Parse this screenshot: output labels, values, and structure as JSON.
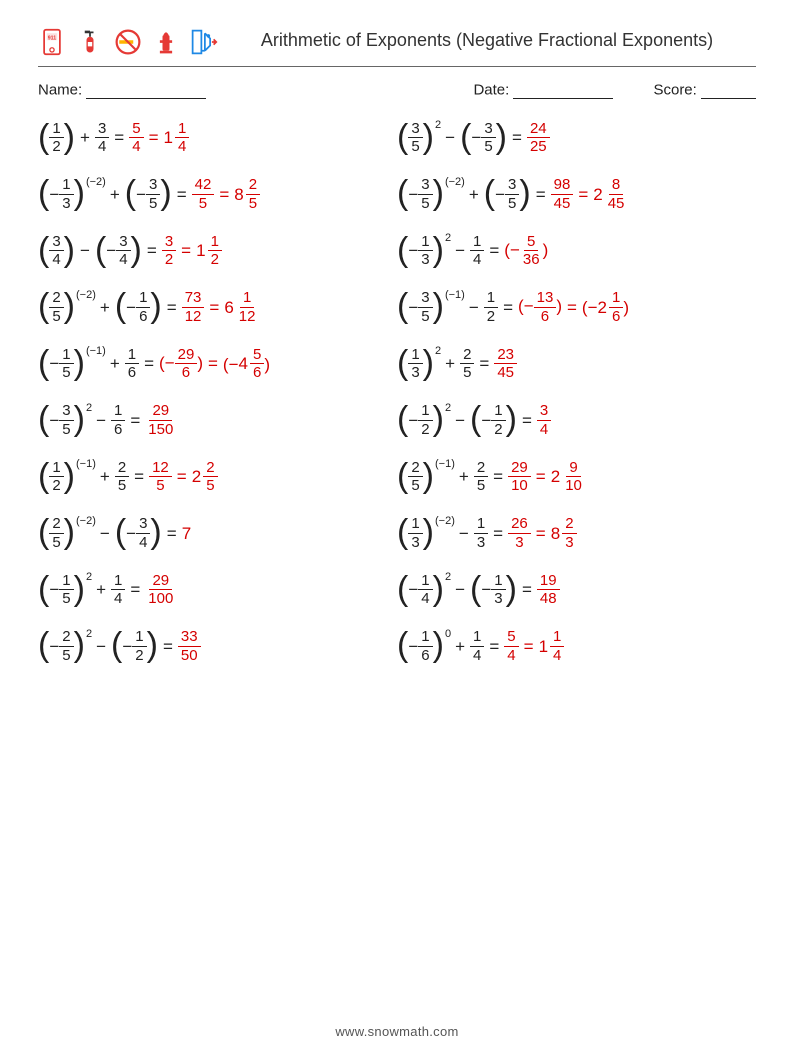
{
  "title": "Arithmetic of Exponents (Negative Fractional Exponents)",
  "name_label": "Name:",
  "date_label": "Date:",
  "score_label": "Score:",
  "footer": "www.snowmath.com",
  "colors": {
    "answer": "#d40000",
    "text": "#222222",
    "rule": "#666666"
  },
  "icons": [
    {
      "name": "emergency-911-icon",
      "stroke": "#e53935",
      "fill": "#ffffff",
      "label": "911"
    },
    {
      "name": "fire-extinguisher-icon",
      "stroke": "#e53935",
      "fill": "#e53935"
    },
    {
      "name": "no-smoking-icon",
      "stroke": "#e53935",
      "fill": "#ffb300"
    },
    {
      "name": "fire-hydrant-icon",
      "stroke": "#e53935",
      "fill": "#e53935"
    },
    {
      "name": "emergency-exit-icon",
      "stroke": "#1e88e5",
      "fill": "#1e88e5"
    }
  ],
  "problems": [
    {
      "base": {
        "sign": "",
        "n": "1",
        "d": "2"
      },
      "exp": null,
      "op": "+",
      "arg": {
        "sign": "",
        "n": "3",
        "d": "4",
        "par": false
      },
      "a1": {
        "n": "5",
        "d": "4"
      },
      "a2": {
        "w": "1",
        "n": "1",
        "d": "4"
      }
    },
    {
      "base": {
        "sign": "",
        "n": "3",
        "d": "5"
      },
      "exp": "2",
      "op": "−",
      "arg": {
        "sign": "−",
        "n": "3",
        "d": "5",
        "par": true
      },
      "a1": {
        "n": "24",
        "d": "25"
      }
    },
    {
      "base": {
        "sign": "−",
        "n": "1",
        "d": "3"
      },
      "exp": "(−2)",
      "op": "+",
      "arg": {
        "sign": "−",
        "n": "3",
        "d": "5",
        "par": true
      },
      "a1": {
        "n": "42",
        "d": "5"
      },
      "a2": {
        "w": "8",
        "n": "2",
        "d": "5"
      }
    },
    {
      "base": {
        "sign": "−",
        "n": "3",
        "d": "5"
      },
      "exp": "(−2)",
      "op": "+",
      "arg": {
        "sign": "−",
        "n": "3",
        "d": "5",
        "par": true
      },
      "a1": {
        "n": "98",
        "d": "45"
      },
      "a2": {
        "w": "2",
        "n": "8",
        "d": "45"
      }
    },
    {
      "base": {
        "sign": "",
        "n": "3",
        "d": "4"
      },
      "exp": null,
      "op": "−",
      "arg": {
        "sign": "−",
        "n": "3",
        "d": "4",
        "par": true
      },
      "a1": {
        "n": "3",
        "d": "2"
      },
      "a2": {
        "w": "1",
        "n": "1",
        "d": "2"
      }
    },
    {
      "base": {
        "sign": "−",
        "n": "1",
        "d": "3"
      },
      "exp": "2",
      "op": "−",
      "arg": {
        "sign": "",
        "n": "1",
        "d": "4",
        "par": false
      },
      "a1": {
        "neg": true,
        "n": "5",
        "d": "36"
      }
    },
    {
      "base": {
        "sign": "",
        "n": "2",
        "d": "5"
      },
      "exp": "(−2)",
      "op": "+",
      "arg": {
        "sign": "−",
        "n": "1",
        "d": "6",
        "par": true
      },
      "a1": {
        "n": "73",
        "d": "12"
      },
      "a2": {
        "w": "6",
        "n": "1",
        "d": "12"
      }
    },
    {
      "base": {
        "sign": "−",
        "n": "3",
        "d": "5"
      },
      "exp": "(−1)",
      "op": "−",
      "arg": {
        "sign": "",
        "n": "1",
        "d": "2",
        "par": false
      },
      "a1": {
        "neg": true,
        "n": "13",
        "d": "6"
      },
      "a2": {
        "neg": true,
        "w": "2",
        "n": "1",
        "d": "6"
      }
    },
    {
      "base": {
        "sign": "−",
        "n": "1",
        "d": "5"
      },
      "exp": "(−1)",
      "op": "+",
      "arg": {
        "sign": "",
        "n": "1",
        "d": "6",
        "par": false
      },
      "a1": {
        "neg": true,
        "n": "29",
        "d": "6"
      },
      "a2": {
        "neg": true,
        "w": "4",
        "n": "5",
        "d": "6"
      }
    },
    {
      "base": {
        "sign": "",
        "n": "1",
        "d": "3"
      },
      "exp": "2",
      "op": "+",
      "arg": {
        "sign": "",
        "n": "2",
        "d": "5",
        "par": false
      },
      "a1": {
        "n": "23",
        "d": "45"
      }
    },
    {
      "base": {
        "sign": "−",
        "n": "3",
        "d": "5"
      },
      "exp": "2",
      "op": "−",
      "arg": {
        "sign": "",
        "n": "1",
        "d": "6",
        "par": false
      },
      "a1": {
        "n": "29",
        "d": "150"
      }
    },
    {
      "base": {
        "sign": "−",
        "n": "1",
        "d": "2"
      },
      "exp": "2",
      "op": "−",
      "arg": {
        "sign": "−",
        "n": "1",
        "d": "2",
        "par": true
      },
      "a1": {
        "n": "3",
        "d": "4"
      }
    },
    {
      "base": {
        "sign": "",
        "n": "1",
        "d": "2"
      },
      "exp": "(−1)",
      "op": "+",
      "arg": {
        "sign": "",
        "n": "2",
        "d": "5",
        "par": false
      },
      "a1": {
        "n": "12",
        "d": "5"
      },
      "a2": {
        "w": "2",
        "n": "2",
        "d": "5"
      }
    },
    {
      "base": {
        "sign": "",
        "n": "2",
        "d": "5"
      },
      "exp": "(−1)",
      "op": "+",
      "arg": {
        "sign": "",
        "n": "2",
        "d": "5",
        "par": false
      },
      "a1": {
        "n": "29",
        "d": "10"
      },
      "a2": {
        "w": "2",
        "n": "9",
        "d": "10"
      }
    },
    {
      "base": {
        "sign": "",
        "n": "2",
        "d": "5"
      },
      "exp": "(−2)",
      "op": "−",
      "arg": {
        "sign": "−",
        "n": "3",
        "d": "4",
        "par": true
      },
      "a1": {
        "int": "7"
      }
    },
    {
      "base": {
        "sign": "",
        "n": "1",
        "d": "3"
      },
      "exp": "(−2)",
      "op": "−",
      "arg": {
        "sign": "",
        "n": "1",
        "d": "3",
        "par": false
      },
      "a1": {
        "n": "26",
        "d": "3"
      },
      "a2": {
        "w": "8",
        "n": "2",
        "d": "3"
      }
    },
    {
      "base": {
        "sign": "−",
        "n": "1",
        "d": "5"
      },
      "exp": "2",
      "op": "+",
      "arg": {
        "sign": "",
        "n": "1",
        "d": "4",
        "par": false
      },
      "a1": {
        "n": "29",
        "d": "100"
      }
    },
    {
      "base": {
        "sign": "−",
        "n": "1",
        "d": "4"
      },
      "exp": "2",
      "op": "−",
      "arg": {
        "sign": "−",
        "n": "1",
        "d": "3",
        "par": true
      },
      "a1": {
        "n": "19",
        "d": "48"
      }
    },
    {
      "base": {
        "sign": "−",
        "n": "2",
        "d": "5"
      },
      "exp": "2",
      "op": "−",
      "arg": {
        "sign": "−",
        "n": "1",
        "d": "2",
        "par": true
      },
      "a1": {
        "n": "33",
        "d": "50"
      }
    },
    {
      "base": {
        "sign": "−",
        "n": "1",
        "d": "6"
      },
      "exp": "0",
      "op": "+",
      "arg": {
        "sign": "",
        "n": "1",
        "d": "4",
        "par": false
      },
      "a1": {
        "n": "5",
        "d": "4"
      },
      "a2": {
        "w": "1",
        "n": "1",
        "d": "4"
      }
    }
  ]
}
